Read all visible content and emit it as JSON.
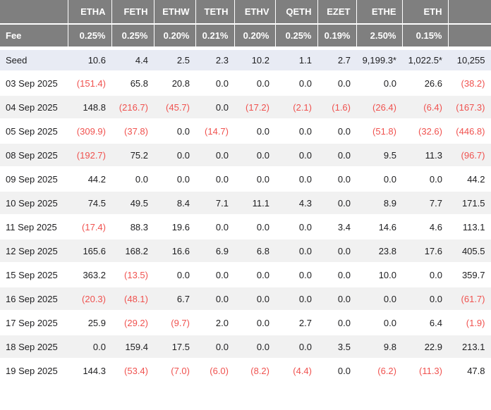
{
  "colors": {
    "negative_value": "#f0524f",
    "header_bg": "#7f7f7f",
    "header_text": "#ffffff",
    "seed_row_bg": "#e8ebf4",
    "stripe_row_bg": "#f1f1f1",
    "body_text": "#1d1d1f"
  },
  "chart_data": {
    "type": "table",
    "columns": [
      "",
      "ETHA",
      "FETH",
      "ETHW",
      "TETH",
      "ETHV",
      "QETH",
      "EZET",
      "ETHE",
      "ETH",
      ""
    ],
    "fee_row": {
      "label": "Fee",
      "values": [
        "0.25%",
        "0.25%",
        "0.20%",
        "0.21%",
        "0.20%",
        "0.25%",
        "0.19%",
        "2.50%",
        "0.15%",
        ""
      ]
    },
    "seed_row": {
      "label": "Seed",
      "values": [
        "10.6",
        "4.4",
        "2.5",
        "2.3",
        "10.2",
        "1.1",
        "2.7",
        "9,199.3*",
        "1,022.5*",
        "10,255"
      ]
    },
    "rows": [
      {
        "date": "03 Sep 2025",
        "values": [
          "(151.4)",
          "65.8",
          "20.8",
          "0.0",
          "0.0",
          "0.0",
          "0.0",
          "0.0",
          "26.6",
          "(38.2)"
        ]
      },
      {
        "date": "04 Sep 2025",
        "values": [
          "148.8",
          "(216.7)",
          "(45.7)",
          "0.0",
          "(17.2)",
          "(2.1)",
          "(1.6)",
          "(26.4)",
          "(6.4)",
          "(167.3)"
        ]
      },
      {
        "date": "05 Sep 2025",
        "values": [
          "(309.9)",
          "(37.8)",
          "0.0",
          "(14.7)",
          "0.0",
          "0.0",
          "0.0",
          "(51.8)",
          "(32.6)",
          "(446.8)"
        ]
      },
      {
        "date": "08 Sep 2025",
        "values": [
          "(192.7)",
          "75.2",
          "0.0",
          "0.0",
          "0.0",
          "0.0",
          "0.0",
          "9.5",
          "11.3",
          "(96.7)"
        ]
      },
      {
        "date": "09 Sep 2025",
        "values": [
          "44.2",
          "0.0",
          "0.0",
          "0.0",
          "0.0",
          "0.0",
          "0.0",
          "0.0",
          "0.0",
          "44.2"
        ]
      },
      {
        "date": "10 Sep 2025",
        "values": [
          "74.5",
          "49.5",
          "8.4",
          "7.1",
          "11.1",
          "4.3",
          "0.0",
          "8.9",
          "7.7",
          "171.5"
        ]
      },
      {
        "date": "11 Sep 2025",
        "values": [
          "(17.4)",
          "88.3",
          "19.6",
          "0.0",
          "0.0",
          "0.0",
          "3.4",
          "14.6",
          "4.6",
          "113.1"
        ]
      },
      {
        "date": "12 Sep 2025",
        "values": [
          "165.6",
          "168.2",
          "16.6",
          "6.9",
          "6.8",
          "0.0",
          "0.0",
          "23.8",
          "17.6",
          "405.5"
        ]
      },
      {
        "date": "15 Sep 2025",
        "values": [
          "363.2",
          "(13.5)",
          "0.0",
          "0.0",
          "0.0",
          "0.0",
          "0.0",
          "10.0",
          "0.0",
          "359.7"
        ]
      },
      {
        "date": "16 Sep 2025",
        "values": [
          "(20.3)",
          "(48.1)",
          "6.7",
          "0.0",
          "0.0",
          "0.0",
          "0.0",
          "0.0",
          "0.0",
          "(61.7)"
        ]
      },
      {
        "date": "17 Sep 2025",
        "values": [
          "25.9",
          "(29.2)",
          "(9.7)",
          "2.0",
          "0.0",
          "2.7",
          "0.0",
          "0.0",
          "6.4",
          "(1.9)"
        ]
      },
      {
        "date": "18 Sep 2025",
        "values": [
          "0.0",
          "159.4",
          "17.5",
          "0.0",
          "0.0",
          "0.0",
          "3.5",
          "9.8",
          "22.9",
          "213.1"
        ]
      },
      {
        "date": "19 Sep 2025",
        "values": [
          "144.3",
          "(53.4)",
          "(7.0)",
          "(6.0)",
          "(8.2)",
          "(4.4)",
          "0.0",
          "(6.2)",
          "(11.3)",
          "47.8"
        ]
      }
    ]
  }
}
